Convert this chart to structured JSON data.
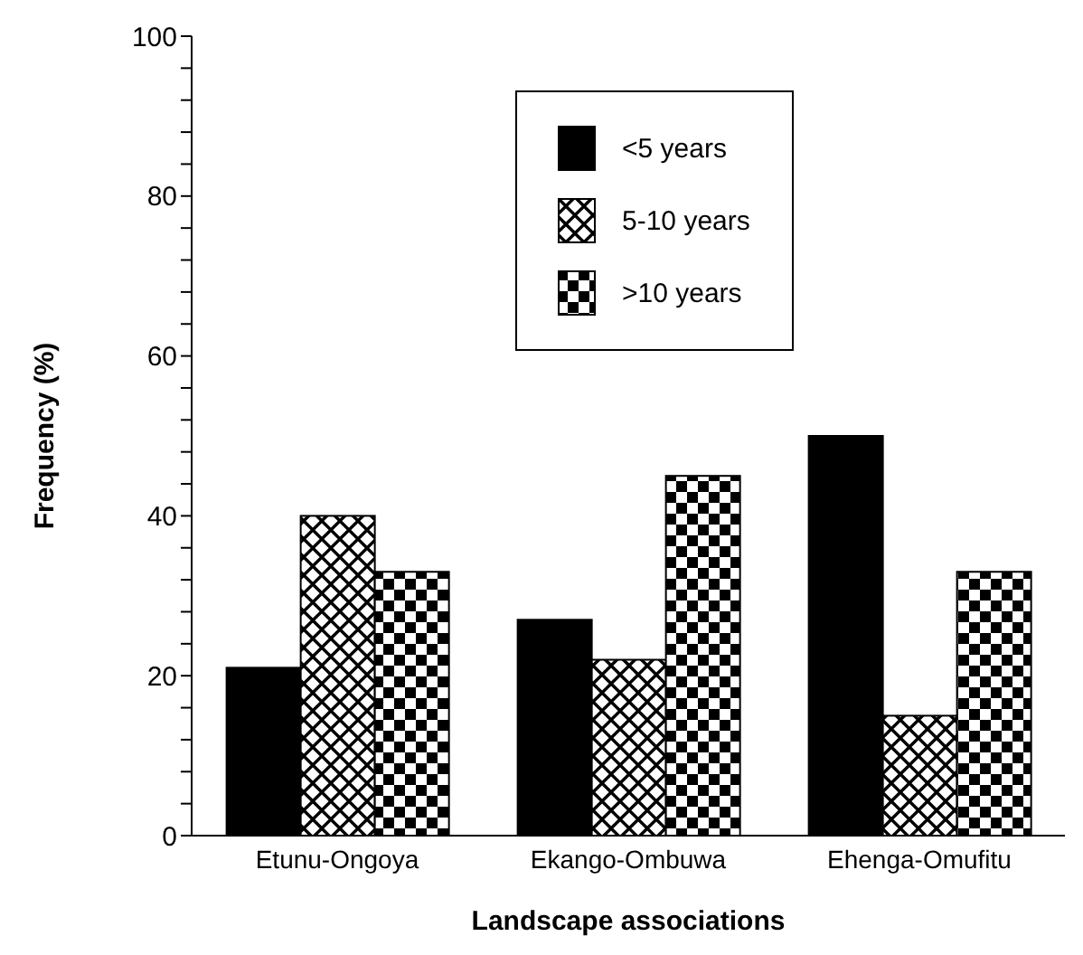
{
  "chart_data": {
    "type": "bar",
    "xlabel": "Landscape associations",
    "ylabel": "Frequency (%)",
    "categories": [
      "Etunu-Ongoya",
      "Ekango-Ombuwa",
      "Ehenga-Omufitu"
    ],
    "series": [
      {
        "name": "<5 years",
        "color": "#000000",
        "values": [
          21,
          27,
          50
        ]
      },
      {
        "name": "5-10 years",
        "color": "#000000",
        "values": [
          40,
          22,
          15
        ]
      },
      {
        "name": ">10 years",
        "color": "#000000",
        "values": [
          33,
          45,
          33
        ]
      }
    ],
    "ylim": [
      0,
      100
    ],
    "yticks": [
      0,
      {
        "value": 4,
        "label": null
      },
      {
        "value": 8,
        "label": null
      },
      {
        "value": 12,
        "label": null
      },
      {
        "value": 16,
        "label": null
      },
      20,
      {
        "value": 24,
        "label": null
      },
      {
        "value": 28,
        "label": null
      },
      {
        "value": 32,
        "label": null
      },
      {
        "value": 36,
        "label": null
      },
      40,
      {
        "value": 44,
        "label": null
      },
      {
        "value": 48,
        "label": null
      },
      {
        "value": 52,
        "label": null
      },
      {
        "value": 56,
        "label": null
      },
      60,
      {
        "value": 64,
        "label": null
      },
      {
        "value": 68,
        "label": null
      },
      {
        "value": 72,
        "label": null
      },
      {
        "value": 76,
        "label": null
      },
      80,
      {
        "value": 84,
        "label": null
      },
      {
        "value": 88,
        "label": null
      },
      {
        "value": 92,
        "label": null
      },
      {
        "value": 96,
        "label": null
      },
      100
    ],
    "grid": false,
    "legend": "top right"
  }
}
